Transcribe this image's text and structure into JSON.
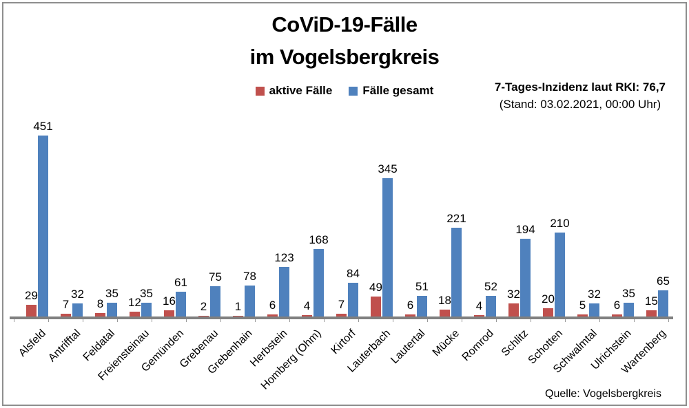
{
  "title": {
    "line1": "CoViD-19-Fälle",
    "line2": "im Vogelsbergkreis"
  },
  "annotation": {
    "line1": "7-Tages-Inzidenz laut RKI: 76,7",
    "line2": "(Stand: 03.02.2021, 00:00 Uhr)"
  },
  "source": "Quelle: Vogelsbergkreis",
  "colors": {
    "active": "#C0504D",
    "total": "#4F81BD",
    "axis": "#808080",
    "frame_border": "#8e8e8e"
  },
  "chart_data": {
    "type": "bar",
    "title": "CoViD-19-Fälle im Vogelsbergkreis",
    "xlabel": "",
    "ylabel": "",
    "ylim": [
      0,
      451
    ],
    "grid": false,
    "legend_position": "top",
    "data_labels": true,
    "categories": [
      "Alsfeld",
      "Antrifftal",
      "Feldatal",
      "Freiensteinau",
      "Gemünden",
      "Grebenau",
      "Grebenhain",
      "Herbstein",
      "Homberg (Ohm)",
      "Kirtorf",
      "Lauterbach",
      "Lautertal",
      "Mücke",
      "Romrod",
      "Schlitz",
      "Schotten",
      "Schwalmtal",
      "Ulrichstein",
      "Wartenberg"
    ],
    "series": [
      {
        "name": "aktive Fälle",
        "color": "#C0504D",
        "values": [
          29,
          7,
          8,
          12,
          16,
          2,
          1,
          6,
          4,
          7,
          49,
          6,
          18,
          4,
          32,
          20,
          5,
          6,
          15
        ]
      },
      {
        "name": "Fälle gesamt",
        "color": "#4F81BD",
        "values": [
          451,
          32,
          35,
          35,
          61,
          75,
          78,
          123,
          168,
          84,
          345,
          51,
          221,
          52,
          194,
          210,
          32,
          35,
          65
        ]
      }
    ]
  }
}
